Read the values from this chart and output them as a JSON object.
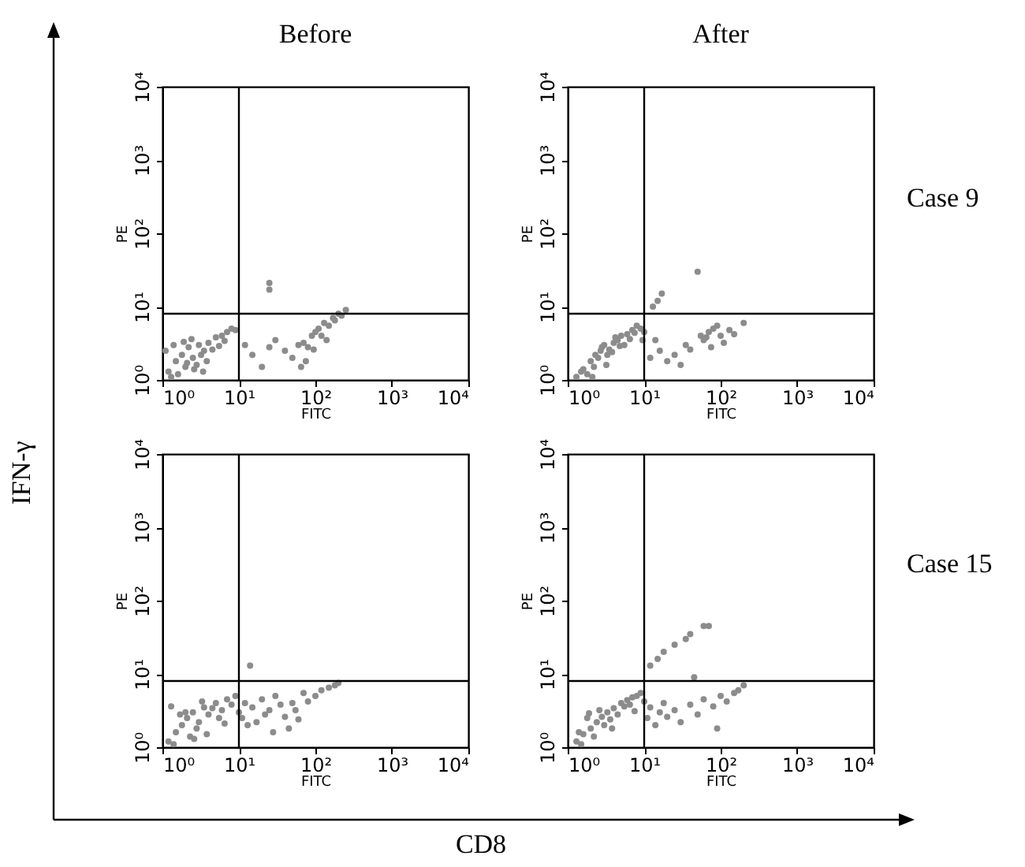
{
  "chart_data": [
    {
      "type": "scatter",
      "title": "Before",
      "xlabel": "FITC",
      "ylabel": "PE",
      "log": "xy",
      "marker": "circle",
      "xlim": [
        1,
        10000
      ],
      "ylim": [
        1,
        10000
      ],
      "xticks": [
        {
          "value": 1,
          "label": "10⁰"
        },
        {
          "value": 10,
          "label": "10¹"
        },
        {
          "value": 100,
          "label": "10²"
        },
        {
          "value": 1000,
          "label": "10³"
        },
        {
          "value": 10000,
          "label": "10⁴"
        }
      ],
      "yticks": [
        {
          "value": 1,
          "label": "10⁰"
        },
        {
          "value": 10,
          "label": "10¹"
        },
        {
          "value": 100,
          "label": "10²"
        },
        {
          "value": 1000,
          "label": "10³"
        },
        {
          "value": 10000,
          "label": "10⁴"
        }
      ],
      "ref_lines": [
        {
          "axis": "x",
          "value": 10,
          "color": "#000000"
        },
        {
          "axis": "y",
          "value": 8,
          "color": "#000000"
        }
      ],
      "annotations": [
        "IFN-γ",
        "CD8"
      ],
      "series": [
        {
          "color": "#8c8c8c",
          "x": [
            1.2,
            1.5,
            1.8,
            2,
            2.2,
            2.5,
            3,
            3.5,
            4,
            5,
            6,
            7,
            8,
            1.3,
            1.6,
            2.1,
            2.6,
            3.2,
            3.8,
            4.5,
            1.1,
            1.4,
            1.9,
            2.4,
            2.8,
            3.4,
            5.5,
            6.5,
            9,
            12,
            15,
            20,
            25,
            30,
            40,
            25,
            25,
            50,
            60,
            70,
            80,
            90,
            100,
            110,
            120,
            130,
            150,
            170,
            200,
            220,
            250,
            180,
            140,
            95,
            75,
            65
          ],
          "values": [
            1.3,
            1.8,
            2.2,
            1.5,
            2.8,
            2,
            3,
            2.5,
            3.2,
            3.8,
            4,
            4.5,
            5,
            1.1,
            1.2,
            1.7,
            1.4,
            2.2,
            1.8,
            2.6,
            2.5,
            3,
            3.3,
            3.6,
            1.6,
            1.3,
            2.9,
            3.4,
            4.8,
            3,
            2.2,
            1.5,
            2.8,
            3.5,
            2.5,
            17,
            21,
            2,
            3,
            3.2,
            2.8,
            4,
            4.5,
            5,
            4,
            6,
            5.5,
            7,
            8,
            7.5,
            9,
            6.5,
            3.5,
            2.6,
            1.8,
            1.5
          ]
        }
      ]
    },
    {
      "type": "scatter",
      "title": "After",
      "xlabel": "FITC",
      "ylabel": "PE",
      "log": "xy",
      "marker": "circle",
      "xlim": [
        1,
        10000
      ],
      "ylim": [
        1,
        10000
      ],
      "xticks": [
        {
          "value": 1,
          "label": "10⁰"
        },
        {
          "value": 10,
          "label": "10¹"
        },
        {
          "value": 100,
          "label": "10²"
        },
        {
          "value": 1000,
          "label": "10³"
        },
        {
          "value": 10000,
          "label": "10⁴"
        }
      ],
      "yticks": [
        {
          "value": 1,
          "label": "10⁰"
        },
        {
          "value": 10,
          "label": "10¹"
        },
        {
          "value": 100,
          "label": "10²"
        },
        {
          "value": 1000,
          "label": "10³"
        },
        {
          "value": 10000,
          "label": "10⁴"
        }
      ],
      "ref_lines": [
        {
          "axis": "x",
          "value": 10,
          "color": "#000000"
        },
        {
          "axis": "y",
          "value": 8,
          "color": "#000000"
        }
      ],
      "annotations": [
        "Case 9"
      ],
      "series": [
        {
          "color": "#8c8c8c",
          "x": [
            1.3,
            1.6,
            2,
            2.3,
            2.7,
            3,
            3.5,
            4,
            4.5,
            5,
            6,
            7,
            8,
            9,
            10,
            1.8,
            2.2,
            2.5,
            3.2,
            3.8,
            4.2,
            5.5,
            6.5,
            7.5,
            1.5,
            2.8,
            3.3,
            2.1,
            4.8,
            9.5,
            12,
            14,
            16,
            20,
            25,
            30,
            35,
            40,
            13,
            15,
            17,
            50,
            55,
            60,
            70,
            80,
            90,
            100,
            110,
            130,
            150,
            200,
            75,
            65
          ],
          "values": [
            1.1,
            1.4,
            1.8,
            2.2,
            2.5,
            3,
            2.6,
            3.2,
            3.5,
            4,
            4.2,
            4.8,
            5.5,
            5,
            4.5,
            1.2,
            1.5,
            2,
            1.6,
            2.4,
            3.8,
            3,
            3.6,
            4.4,
            1.3,
            2.8,
            2.2,
            1.1,
            2.9,
            3.5,
            2,
            3.5,
            2.5,
            1.8,
            2.2,
            1.6,
            3,
            2.6,
            10,
            12,
            15,
            30,
            4,
            3.5,
            4.5,
            5,
            5.5,
            4,
            3.2,
            4.8,
            4.2,
            6,
            2.8,
            3.8
          ]
        }
      ]
    },
    {
      "type": "scatter",
      "xlabel": "FITC",
      "ylabel": "PE",
      "log": "xy",
      "marker": "circle",
      "xlim": [
        1,
        10000
      ],
      "ylim": [
        1,
        10000
      ],
      "xticks": [
        {
          "value": 1,
          "label": "10⁰"
        },
        {
          "value": 10,
          "label": "10¹"
        },
        {
          "value": 100,
          "label": "10²"
        },
        {
          "value": 1000,
          "label": "10³"
        },
        {
          "value": 10000,
          "label": "10⁴"
        }
      ],
      "yticks": [
        {
          "value": 1,
          "label": "10⁰"
        },
        {
          "value": 10,
          "label": "10¹"
        },
        {
          "value": 100,
          "label": "10²"
        },
        {
          "value": 1000,
          "label": "10³"
        },
        {
          "value": 10000,
          "label": "10⁴"
        }
      ],
      "ref_lines": [
        {
          "axis": "x",
          "value": 10,
          "color": "#000000"
        },
        {
          "axis": "y",
          "value": 8,
          "color": "#000000"
        }
      ],
      "series": [
        {
          "color": "#8c8c8c",
          "x": [
            1.2,
            1.5,
            1.8,
            2.1,
            2.5,
            3,
            3.5,
            4,
            5,
            6,
            7,
            8,
            9,
            1.4,
            1.7,
            2.3,
            2.8,
            3.3,
            4.5,
            5.5,
            6.5,
            1.3,
            2,
            2.6,
            3.8,
            10,
            11,
            12,
            13,
            15,
            17,
            20,
            22,
            25,
            30,
            35,
            40,
            14,
            50,
            60,
            70,
            80,
            100,
            120,
            150,
            180,
            200,
            45,
            55,
            28
          ],
          "values": [
            1.2,
            1.6,
            2,
            2.5,
            3,
            2.2,
            3.5,
            2.8,
            4,
            3.2,
            4.5,
            3.8,
            5,
            1.1,
            2.8,
            1.4,
            1.8,
            4.2,
            3.4,
            2.5,
            2.1,
            3.6,
            3,
            1.3,
            1.5,
            3,
            2.5,
            4,
            2,
            3.5,
            2.2,
            4.5,
            2.8,
            3.2,
            5,
            3.8,
            2.6,
            13,
            4,
            2.4,
            5.5,
            4.2,
            5,
            6,
            6.5,
            7,
            7.5,
            1.8,
            3.2,
            1.6
          ]
        }
      ]
    },
    {
      "type": "scatter",
      "xlabel": "FITC",
      "ylabel": "PE",
      "log": "xy",
      "marker": "circle",
      "xlim": [
        1,
        10000
      ],
      "ylim": [
        1,
        10000
      ],
      "xticks": [
        {
          "value": 1,
          "label": "10⁰"
        },
        {
          "value": 10,
          "label": "10¹"
        },
        {
          "value": 100,
          "label": "10²"
        },
        {
          "value": 1000,
          "label": "10³"
        },
        {
          "value": 10000,
          "label": "10⁴"
        }
      ],
      "yticks": [
        {
          "value": 1,
          "label": "10⁰"
        },
        {
          "value": 10,
          "label": "10¹"
        },
        {
          "value": 100,
          "label": "10²"
        },
        {
          "value": 1000,
          "label": "10³"
        },
        {
          "value": 10000,
          "label": "10⁴"
        }
      ],
      "ref_lines": [
        {
          "axis": "x",
          "value": 10,
          "color": "#000000"
        },
        {
          "axis": "y",
          "value": 8,
          "color": "#000000"
        }
      ],
      "annotations": [
        "Case 15"
      ],
      "series": [
        {
          "color": "#8c8c8c",
          "x": [
            1.3,
            1.6,
            2,
            2.4,
            2.8,
            3.3,
            4,
            4.5,
            5,
            6,
            7,
            8,
            9,
            10,
            1.5,
            1.8,
            2.2,
            2.6,
            3,
            3.6,
            5.5,
            6.5,
            7.5,
            1.4,
            1.9,
            3.8,
            11,
            12,
            14,
            16,
            18,
            20,
            25,
            30,
            40,
            50,
            60,
            80,
            100,
            120,
            150,
            170,
            200,
            12,
            15,
            18,
            25,
            35,
            40,
            60,
            70,
            45,
            90
          ],
          "values": [
            1.2,
            1.5,
            1.8,
            2.2,
            2.6,
            3,
            3.4,
            2.8,
            4,
            4.4,
            4.8,
            5,
            5.5,
            4.2,
            1.1,
            2.5,
            1.4,
            3.2,
            2,
            2.4,
            3.6,
            3.8,
            3.1,
            1.6,
            2.9,
            1.8,
            2.5,
            3.5,
            2,
            3,
            4,
            2.6,
            3.2,
            2.2,
            3.8,
            2.8,
            4.5,
            3.6,
            5,
            4.2,
            5.5,
            6,
            7,
            13,
            16,
            20,
            25,
            30,
            35,
            45,
            45,
            9,
            1.8
          ]
        }
      ]
    }
  ]
}
